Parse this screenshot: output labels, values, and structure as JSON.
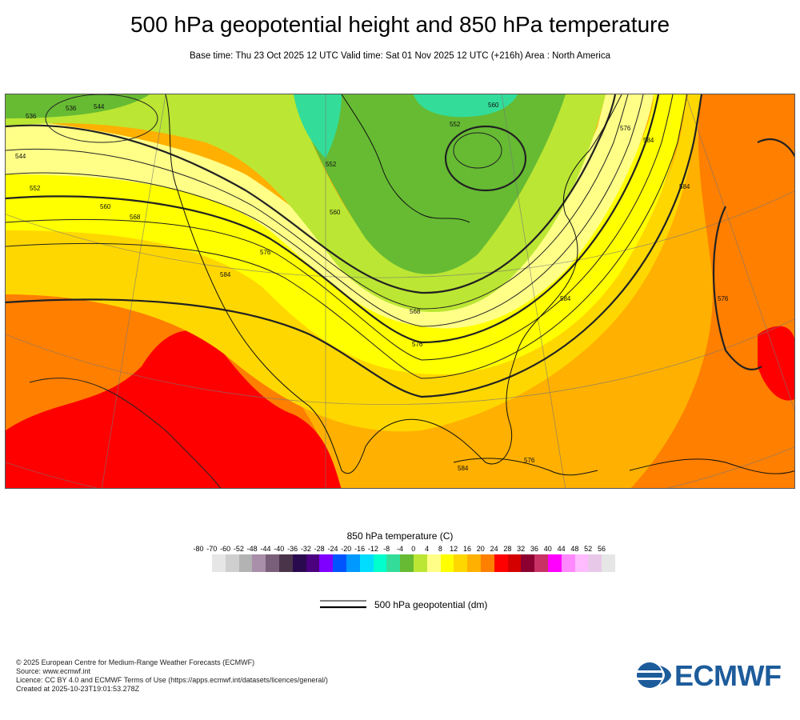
{
  "header": {
    "title": "500 hPa geopotential height and 850 hPa temperature",
    "subtitle": "Base time: Thu 23 Oct 2025 12 UTC Valid time: Sat 01 Nov 2025 12 UTC (+216h) Area : North America"
  },
  "map": {
    "contour_labels": [
      "536",
      "544",
      "552",
      "560",
      "568",
      "576",
      "584",
      "552",
      "560",
      "568",
      "576",
      "584",
      "536",
      "544",
      "552",
      "560",
      "576",
      "584",
      "584",
      "576",
      "576",
      "584"
    ]
  },
  "legend": {
    "temperature_title": "850 hPa temperature (C)",
    "colorbar_ticks": [
      "-80",
      "-70",
      "-60",
      "-52",
      "-48",
      "-44",
      "-40",
      "-36",
      "-32",
      "-28",
      "-24",
      "-20",
      "-16",
      "-12",
      "-8",
      "-4",
      "0",
      "4",
      "8",
      "12",
      "16",
      "20",
      "24",
      "28",
      "32",
      "36",
      "40",
      "44",
      "48",
      "52",
      "56"
    ],
    "colorbar_colors": [
      "#e6e6e6",
      "#cfcfcf",
      "#b3b3b3",
      "#a98fa9",
      "#7a5f7a",
      "#4a344a",
      "#2a0a4e",
      "#4b007f",
      "#7f00ff",
      "#0055ff",
      "#0099ff",
      "#00ddff",
      "#00ffcc",
      "#33dd99",
      "#66bb33",
      "#bbe633",
      "#ffff88",
      "#ffff00",
      "#ffd700",
      "#ffb000",
      "#ff7f00",
      "#ff0000",
      "#d40000",
      "#8b0030",
      "#c83264",
      "#ff00ff",
      "#ff88ff",
      "#ffbbff",
      "#e8c8e8",
      "#e6e6e6"
    ],
    "contour_label": "500 hPa geopotential (dm)"
  },
  "credits": [
    "© 2025 European Centre for Medium-Range Weather Forecasts (ECMWF)",
    "Source: www.ecmwf.int",
    "Licence: CC BY 4.0 and ECMWF Terms of Use (https://apps.ecmwf.int/datasets/licences/general/)",
    "Created at 2025-10-23T19:01:53.278Z"
  ],
  "logo": {
    "text": "ECMWF",
    "color": "#1d5c9b"
  },
  "colors": {
    "cold_green": "#66bb33",
    "light_green": "#bbe633",
    "pale_yellow": "#ffff88",
    "yellow": "#ffff00",
    "gold": "#ffd700",
    "orange": "#ffb000",
    "dark_orange": "#ff7f00",
    "red": "#ff0000",
    "teal": "#33dd99"
  }
}
